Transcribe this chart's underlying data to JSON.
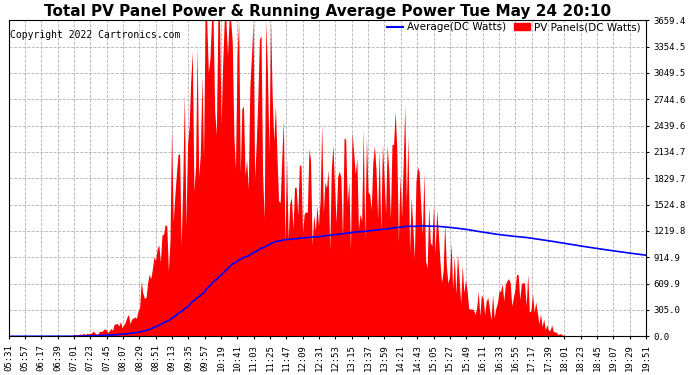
{
  "title": "Total PV Panel Power & Running Average Power Tue May 24 20:10",
  "copyright": "Copyright 2022 Cartronics.com",
  "legend_avg": "Average(DC Watts)",
  "legend_pv": "PV Panels(DC Watts)",
  "yticks": [
    0.0,
    305.0,
    609.9,
    914.9,
    1219.8,
    1524.8,
    1829.7,
    2134.7,
    2439.6,
    2744.6,
    3049.5,
    3354.5,
    3659.4
  ],
  "ymax": 3659.4,
  "ymin": 0.0,
  "bg_color": "#ffffff",
  "grid_color": "#aaaaaa",
  "pv_color": "#ff0000",
  "avg_color": "#0000ff",
  "xtick_labels": [
    "05:31",
    "05:57",
    "06:17",
    "06:39",
    "07:01",
    "07:23",
    "07:45",
    "08:07",
    "08:29",
    "08:51",
    "09:13",
    "09:35",
    "09:57",
    "10:19",
    "10:41",
    "11:03",
    "11:25",
    "11:47",
    "12:09",
    "12:31",
    "12:53",
    "13:15",
    "13:37",
    "13:59",
    "14:21",
    "14:43",
    "15:05",
    "15:27",
    "15:49",
    "16:11",
    "16:33",
    "16:55",
    "17:17",
    "17:39",
    "18:01",
    "18:23",
    "18:45",
    "19:07",
    "19:29",
    "19:51"
  ],
  "title_fontsize": 11,
  "copyright_fontsize": 7,
  "legend_fontsize": 7.5,
  "tick_fontsize": 6.5
}
